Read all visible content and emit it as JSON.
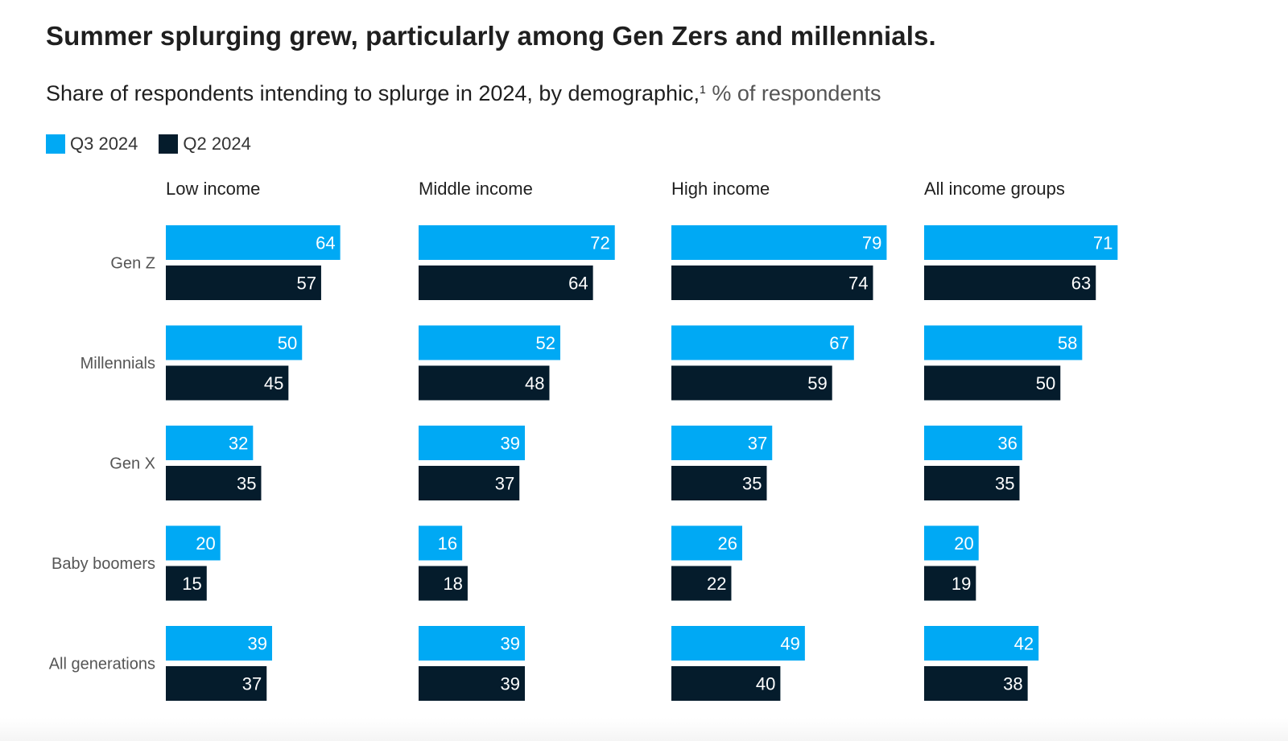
{
  "header": {
    "title": "Summer splurging grew, particularly among Gen Zers and millennials.",
    "subtitle_main": "Share of respondents intending to splurge in 2024, by demographic,",
    "subtitle_sup": "1",
    "subtitle_unit": " % of respondents"
  },
  "legend": [
    {
      "label": "Q3 2024",
      "color": "#00a9f4"
    },
    {
      "label": "Q2 2024",
      "color": "#051c2c"
    }
  ],
  "chart_data": {
    "type": "bar",
    "orientation": "horizontal",
    "layout": "small-multiples",
    "panels": [
      "Low income",
      "Middle income",
      "High income",
      "All income groups"
    ],
    "categories": [
      "Gen Z",
      "Millennials",
      "Gen X",
      "Baby boomers",
      "All generations"
    ],
    "series": [
      {
        "name": "Q3 2024",
        "color": "#00a9f4",
        "values": [
          [
            64,
            50,
            32,
            20,
            39
          ],
          [
            72,
            52,
            39,
            16,
            39
          ],
          [
            79,
            67,
            37,
            26,
            49
          ],
          [
            71,
            58,
            36,
            20,
            42
          ]
        ]
      },
      {
        "name": "Q2 2024",
        "color": "#051c2c",
        "values": [
          [
            57,
            45,
            35,
            15,
            37
          ],
          [
            64,
            48,
            37,
            18,
            39
          ],
          [
            74,
            59,
            35,
            22,
            40
          ],
          [
            63,
            50,
            35,
            19,
            38
          ]
        ]
      }
    ],
    "xlim": [
      0,
      100
    ],
    "data_labels": true,
    "grid": false,
    "legend_position": "top-left"
  }
}
